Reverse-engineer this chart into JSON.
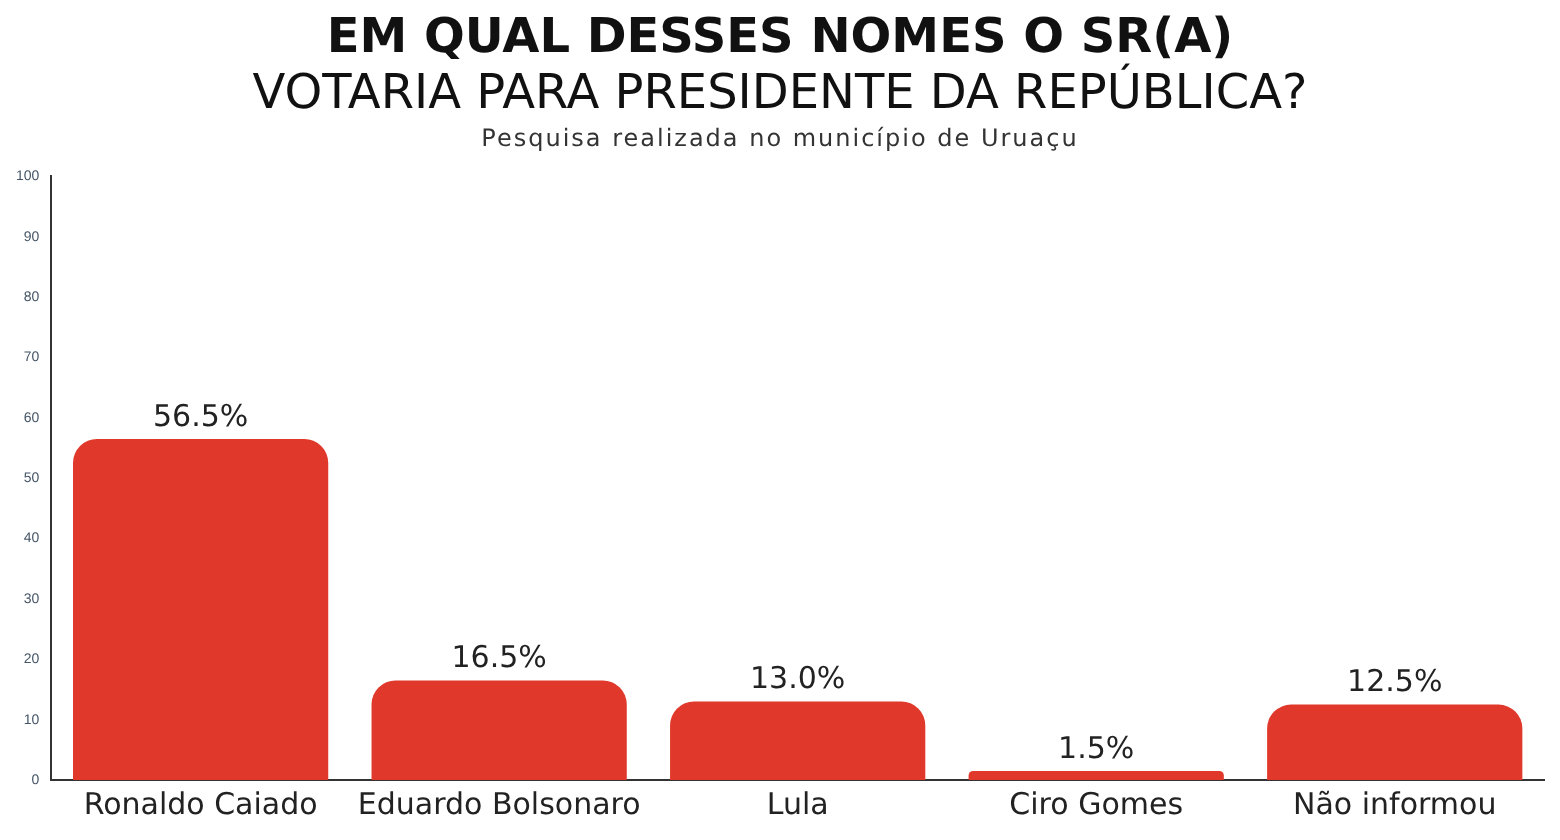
{
  "chart_data": {
    "type": "bar",
    "title": "EM QUAL DESSES NOMES O SR(A)\nVOTARIA PARA PRESIDENTE DA REPÚBLICA?",
    "subtitle": "Pesquisa realizada no município de Uruaçu",
    "categories": [
      "Ronaldo Caiado",
      "Eduardo Bolsonaro",
      "Lula",
      "Ciro Gomes",
      "Não informou"
    ],
    "values": [
      56.5,
      16.5,
      13.0,
      1.5,
      12.5
    ],
    "value_labels": [
      "56.5%",
      "16.5%",
      "13.0%",
      "1.5%",
      "12.5%"
    ],
    "color": "#e0392b",
    "ylim": [
      0,
      100
    ],
    "yticks": [
      0,
      10,
      20,
      30,
      40,
      50,
      60,
      70,
      80,
      90,
      100
    ],
    "grid": false,
    "legend": false
  }
}
